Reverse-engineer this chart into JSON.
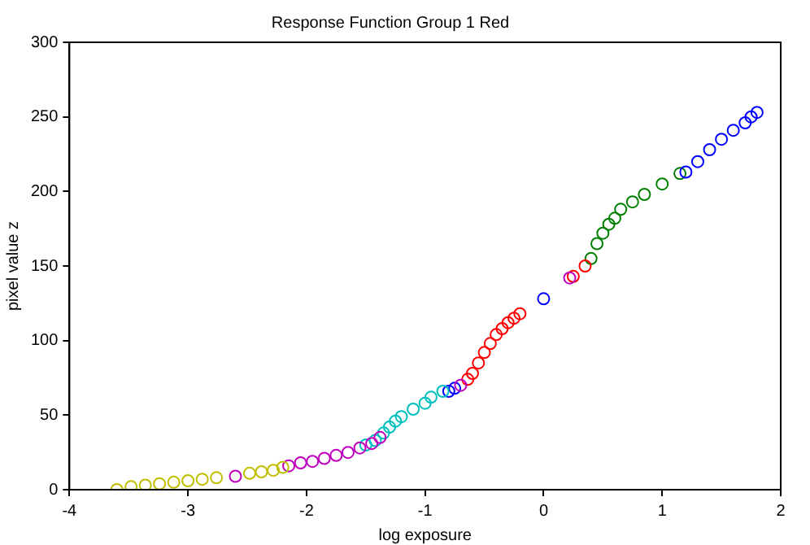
{
  "chart_data": {
    "type": "scatter",
    "title": "Response Function Group 1 Red",
    "xlabel": "log exposure",
    "ylabel": "pixel value z",
    "xlim": [
      -4,
      2
    ],
    "xticks": [
      -4,
      -3,
      -2,
      -1,
      0,
      1,
      2
    ],
    "ylim": [
      0,
      300
    ],
    "yticks": [
      0,
      50,
      100,
      150,
      200,
      250,
      300
    ],
    "grid": false,
    "legend": false,
    "marker": "circle",
    "series": [
      {
        "color": "#bfbf00",
        "x": [
          -3.6,
          -3.48,
          -3.36,
          -3.24,
          -3.12,
          -3.0,
          -2.88,
          -2.76,
          -2.48,
          -2.38,
          -2.28,
          -2.2
        ],
        "values": [
          0,
          2,
          3,
          4,
          5,
          6,
          7,
          8,
          11,
          12,
          13,
          15
        ]
      },
      {
        "color": "#bf00bf",
        "x": [
          -2.6,
          -2.15,
          -2.05,
          -1.95,
          -1.85,
          -1.75,
          -1.65,
          -1.55,
          -1.45,
          -1.38,
          -0.7,
          0.22
        ],
        "values": [
          9,
          16,
          18,
          19,
          21,
          23,
          25,
          28,
          31,
          35,
          70,
          142
        ]
      },
      {
        "color": "#00bfbf",
        "x": [
          -1.5,
          -1.42,
          -1.35,
          -1.3,
          -1.25,
          -1.2,
          -1.1,
          -1.0,
          -0.95,
          -0.85
        ],
        "values": [
          30,
          33,
          38,
          42,
          46,
          49,
          54,
          58,
          62,
          66
        ]
      },
      {
        "color": "#0000ff",
        "x": [
          -0.8,
          -0.75,
          0,
          1.2,
          1.3,
          1.4,
          1.5,
          1.6,
          1.7,
          1.75,
          1.8
        ],
        "values": [
          66,
          68,
          128,
          213,
          220,
          228,
          235,
          241,
          246,
          250,
          253
        ]
      },
      {
        "color": "#ff0000",
        "x": [
          -0.64,
          -0.6,
          -0.55,
          -0.5,
          -0.45,
          -0.4,
          -0.35,
          -0.3,
          -0.25,
          -0.2,
          0.25,
          0.35
        ],
        "values": [
          74,
          78,
          85,
          92,
          98,
          104,
          108,
          112,
          115,
          118,
          143,
          150
        ]
      },
      {
        "color": "#008000",
        "x": [
          0.4,
          0.45,
          0.5,
          0.55,
          0.6,
          0.65,
          0.75,
          0.85,
          1.0,
          1.15
        ],
        "values": [
          155,
          165,
          172,
          178,
          182,
          188,
          193,
          198,
          205,
          212
        ]
      }
    ]
  }
}
